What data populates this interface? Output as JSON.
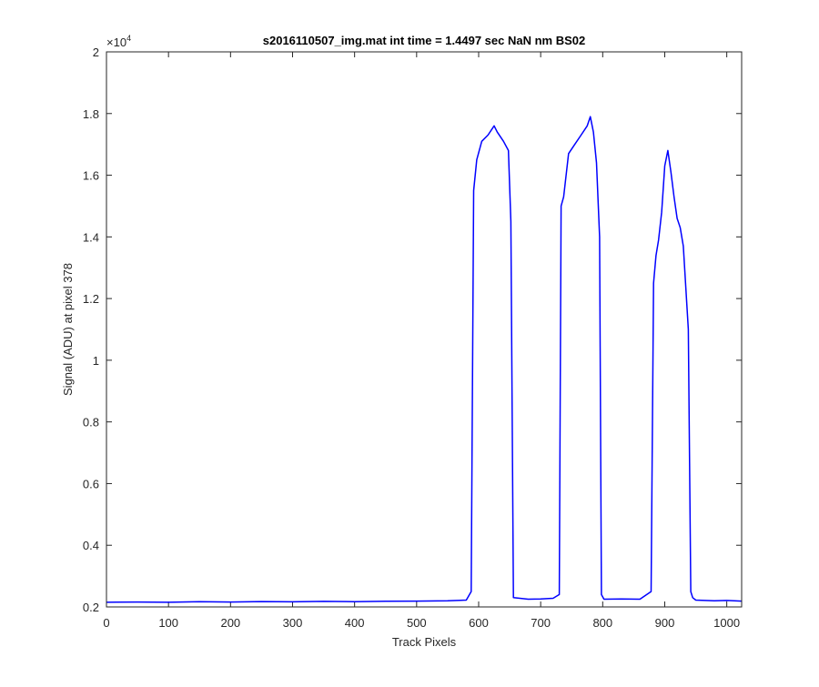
{
  "chart_data": {
    "type": "line",
    "title": "s2016110507_img.mat int time = 1.4497 sec  NaN nm BS02",
    "xlabel": "Track Pixels",
    "ylabel": "Signal (ADU) at pixel 378",
    "xlim": [
      0,
      1024
    ],
    "ylim": [
      2000,
      20000
    ],
    "x_ticks": [
      "0",
      "100",
      "200",
      "300",
      "400",
      "500",
      "600",
      "700",
      "800",
      "900",
      "1000"
    ],
    "x_tick_values": [
      0,
      100,
      200,
      300,
      400,
      500,
      600,
      700,
      800,
      900,
      1000
    ],
    "y_ticks": [
      "0.2",
      "0.4",
      "0.6",
      "0.8",
      "1",
      "1.2",
      "1.4",
      "1.6",
      "1.8",
      "2"
    ],
    "y_tick_values": [
      2000,
      4000,
      6000,
      8000,
      10000,
      12000,
      14000,
      16000,
      18000,
      20000
    ],
    "y_exponent_base": "×10",
    "y_exponent_power": "4",
    "grid": false,
    "line_color": "#0000ff",
    "series": [
      {
        "x": [
          0,
          50,
          100,
          150,
          200,
          250,
          300,
          350,
          400,
          450,
          500,
          550,
          580,
          588,
          592,
          597,
          605,
          615,
          625,
          630,
          640,
          648,
          652,
          656,
          680,
          700,
          720,
          730,
          733,
          737,
          745,
          755,
          765,
          775,
          780,
          785,
          790,
          795,
          798,
          802,
          830,
          860,
          878,
          882,
          886,
          890,
          895,
          900,
          905,
          910,
          915,
          920,
          925,
          930,
          938,
          942,
          945,
          950,
          980,
          1000,
          1024
        ],
        "y": [
          2150,
          2160,
          2150,
          2170,
          2160,
          2175,
          2165,
          2180,
          2170,
          2185,
          2190,
          2200,
          2220,
          2500,
          15500,
          16500,
          17100,
          17300,
          17600,
          17400,
          17100,
          16800,
          14500,
          2300,
          2250,
          2260,
          2280,
          2400,
          15000,
          15300,
          16700,
          17000,
          17300,
          17600,
          17900,
          17400,
          16400,
          14000,
          2400,
          2250,
          2260,
          2250,
          2500,
          12500,
          13400,
          13900,
          14800,
          16300,
          16800,
          16100,
          15300,
          14600,
          14300,
          13700,
          11000,
          2500,
          2300,
          2220,
          2200,
          2210,
          2190
        ]
      }
    ]
  }
}
